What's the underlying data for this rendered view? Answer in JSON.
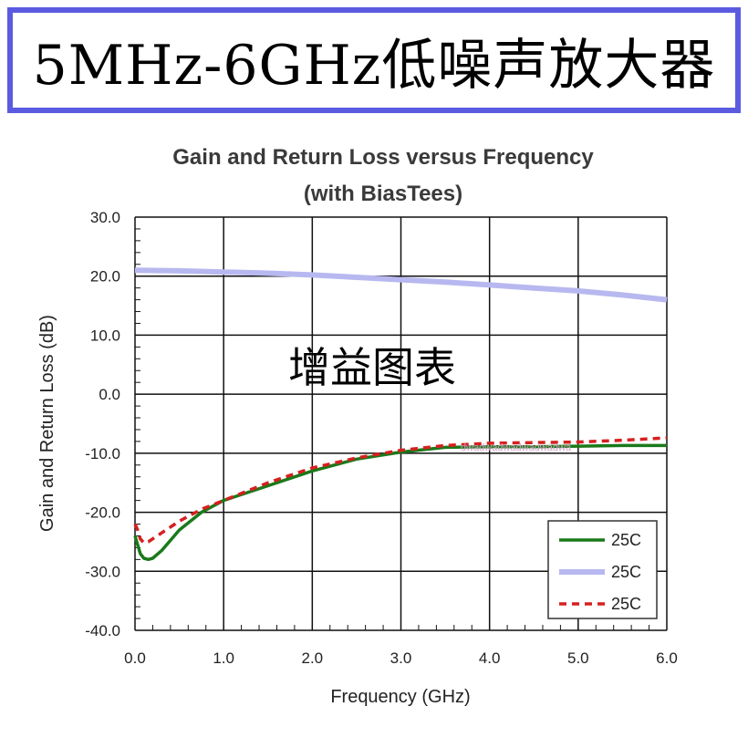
{
  "banner": {
    "title": "5MHz-6GHz低噪声放大器"
  },
  "overlay_text": "增益图表",
  "watermark": "dwadwadwadwadwadwa",
  "chart_data": {
    "type": "line",
    "title": "Gain and Return Loss versus Frequency",
    "subtitle": "(with BiasTees)",
    "xlabel": "Frequency (GHz)",
    "ylabel": "Gain and Return Loss (dB)",
    "xlim": [
      0,
      6
    ],
    "ylim": [
      -40,
      30
    ],
    "xticks": [
      "0.0",
      "1.0",
      "2.0",
      "3.0",
      "4.0",
      "5.0",
      "6.0"
    ],
    "yticks": [
      "30.0",
      "20.0",
      "10.0",
      "0.0",
      "-10.0",
      "-20.0",
      "-30.0",
      "-40.0"
    ],
    "grid": true,
    "legend_position": "bottom-right",
    "series": [
      {
        "name": "25C",
        "color": "#1a7a1a",
        "style": "solid",
        "x": [
          0.0,
          0.03,
          0.06,
          0.1,
          0.15,
          0.2,
          0.3,
          0.5,
          0.75,
          1.0,
          1.5,
          2.0,
          2.5,
          3.0,
          3.5,
          4.0,
          4.5,
          5.0,
          5.5,
          6.0
        ],
        "y": [
          -24.0,
          -25.5,
          -27.0,
          -27.8,
          -28.0,
          -27.8,
          -26.5,
          -23.0,
          -20.0,
          -18.0,
          -15.5,
          -13.0,
          -11.0,
          -9.8,
          -9.0,
          -8.9,
          -8.9,
          -8.8,
          -8.7,
          -8.7
        ]
      },
      {
        "name": "25C",
        "color": "#b8b8f0",
        "style": "solid",
        "x": [
          0.0,
          0.5,
          1.0,
          1.5,
          2.0,
          2.5,
          3.0,
          3.5,
          4.0,
          4.5,
          5.0,
          5.5,
          6.0
        ],
        "y": [
          21.0,
          20.9,
          20.7,
          20.5,
          20.2,
          19.8,
          19.4,
          19.0,
          18.5,
          18.0,
          17.5,
          16.8,
          16.0
        ]
      },
      {
        "name": "25C",
        "color": "#d62020",
        "style": "dashed",
        "x": [
          0.0,
          0.03,
          0.06,
          0.1,
          0.15,
          0.2,
          0.3,
          0.5,
          0.75,
          1.0,
          1.5,
          2.0,
          2.5,
          3.0,
          3.5,
          4.0,
          4.5,
          5.0,
          5.5,
          6.0
        ],
        "y": [
          -22.0,
          -23.0,
          -24.5,
          -25.2,
          -25.0,
          -24.5,
          -23.5,
          -21.5,
          -19.5,
          -18.0,
          -15.0,
          -12.5,
          -10.8,
          -9.5,
          -8.7,
          -8.3,
          -8.2,
          -8.1,
          -7.8,
          -7.4
        ]
      }
    ]
  }
}
